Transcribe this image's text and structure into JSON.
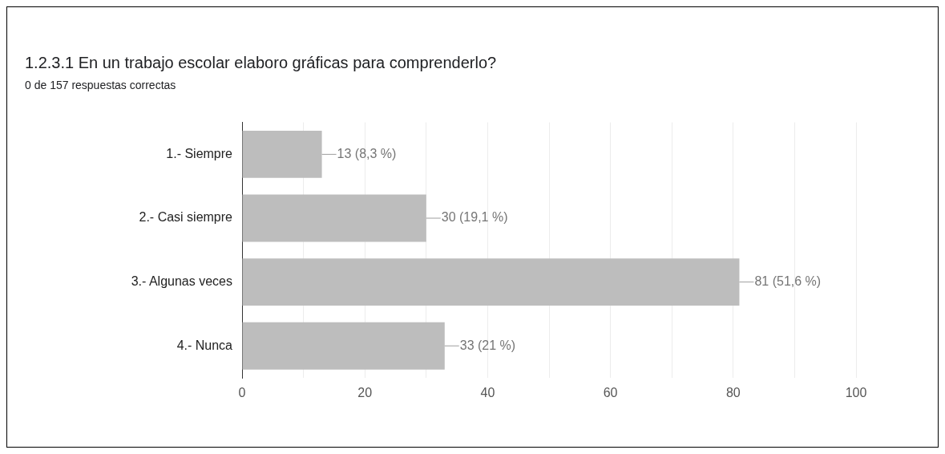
{
  "chart_data": {
    "type": "bar",
    "orientation": "horizontal",
    "title": "1.2.3.1 En un trabajo escolar elaboro gráficas para comprenderlo?",
    "subtitle": "0 de 157 respuestas correctas",
    "categories": [
      "1.- Siempre",
      "2.- Casi siempre",
      "3.- Algunas veces",
      "4.- Nunca"
    ],
    "values": [
      13,
      30,
      81,
      33
    ],
    "color": "#bdbdbd",
    "value_labels": [
      "13 (8,3 %)",
      "30 (19,1 %)",
      "81 (51,6 %)",
      "33 (21 %)"
    ],
    "xlim": [
      0,
      100
    ],
    "xticks": [
      0,
      {
        "value": 10,
        "label": null
      },
      20,
      {
        "value": 30,
        "label": null
      },
      40,
      {
        "value": 50,
        "label": null
      },
      60,
      {
        "value": 70,
        "label": null
      },
      80,
      {
        "value": 90,
        "label": null
      },
      100
    ],
    "grid": "x",
    "legend": false
  }
}
